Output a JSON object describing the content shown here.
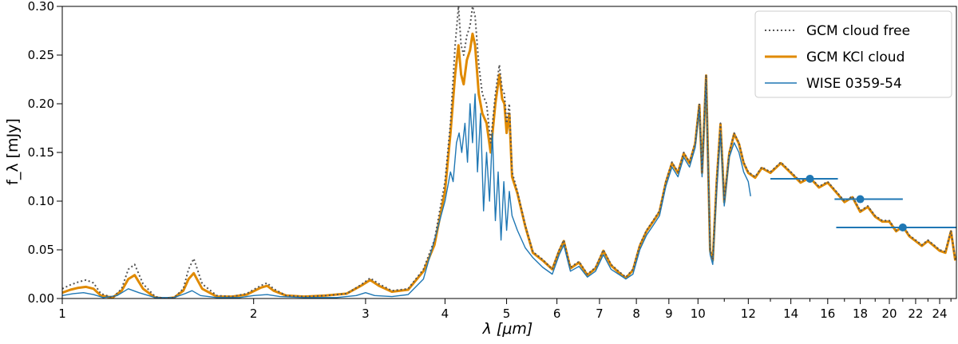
{
  "chart_data": {
    "type": "line",
    "xlabel": "λ [μm]",
    "ylabel": "f_λ [mJy]",
    "xscale": "log",
    "xlim": [
      1,
      25.5
    ],
    "ylim": [
      0,
      0.3
    ],
    "grid": false,
    "legend_position": "top-right",
    "x_ticks": [
      1,
      2,
      3,
      4,
      5,
      6,
      7,
      8,
      9,
      10,
      12,
      14,
      16,
      18,
      20,
      22,
      24
    ],
    "x_tick_labels": [
      "1",
      "2",
      "3",
      "4",
      "5",
      "6",
      "7",
      "8",
      "9",
      "10",
      "12",
      "14",
      "16",
      "18",
      "20",
      "22",
      "24"
    ],
    "y_ticks": [
      0.0,
      0.05,
      0.1,
      0.15,
      0.2,
      0.25,
      0.3
    ],
    "y_tick_labels": [
      "0.00",
      "0.05",
      "0.10",
      "0.15",
      "0.20",
      "0.25",
      "0.30"
    ],
    "series": [
      {
        "name": "GCM cloud free",
        "color": "#555555",
        "style": "dotted",
        "x": [
          1.0,
          1.03,
          1.06,
          1.09,
          1.12,
          1.15,
          1.2,
          1.24,
          1.27,
          1.3,
          1.34,
          1.4,
          1.45,
          1.5,
          1.55,
          1.58,
          1.61,
          1.66,
          1.75,
          1.85,
          1.95,
          2.05,
          2.1,
          2.15,
          2.25,
          2.4,
          2.6,
          2.8,
          2.95,
          3.05,
          3.15,
          3.3,
          3.5,
          3.7,
          3.85,
          4.0,
          4.08,
          4.15,
          4.2,
          4.24,
          4.28,
          4.33,
          4.38,
          4.42,
          4.46,
          4.52,
          4.58,
          4.65,
          4.72,
          4.8,
          4.87,
          4.92,
          4.96,
          5.0,
          5.05,
          5.1,
          5.2,
          5.35,
          5.5,
          5.7,
          5.9,
          6.05,
          6.15,
          6.3,
          6.5,
          6.7,
          6.9,
          7.1,
          7.3,
          7.5,
          7.7,
          7.9,
          8.1,
          8.3,
          8.5,
          8.7,
          8.9,
          9.1,
          9.3,
          9.5,
          9.7,
          9.9,
          10.05,
          10.15,
          10.3,
          10.45,
          10.55,
          10.7,
          10.85,
          11.0,
          11.2,
          11.4,
          11.6,
          11.8,
          12.0,
          12.3,
          12.6,
          13.0,
          13.5,
          14.0,
          14.5,
          15.0,
          15.5,
          16.0,
          16.5,
          17.0,
          17.5,
          18.0,
          18.5,
          19.0,
          19.5,
          20.0,
          20.5,
          21.0,
          21.5,
          22.0,
          22.5,
          23.0,
          23.5,
          24.0,
          24.5,
          25.0,
          25.4
        ],
        "y": [
          0.01,
          0.014,
          0.017,
          0.019,
          0.016,
          0.005,
          0.001,
          0.01,
          0.03,
          0.035,
          0.015,
          0.002,
          0.0,
          0.001,
          0.01,
          0.03,
          0.041,
          0.015,
          0.003,
          0.002,
          0.005,
          0.013,
          0.016,
          0.01,
          0.003,
          0.002,
          0.003,
          0.005,
          0.014,
          0.021,
          0.015,
          0.008,
          0.01,
          0.03,
          0.06,
          0.12,
          0.18,
          0.26,
          0.3,
          0.26,
          0.25,
          0.27,
          0.28,
          0.3,
          0.29,
          0.24,
          0.21,
          0.2,
          0.16,
          0.21,
          0.24,
          0.215,
          0.21,
          0.18,
          0.2,
          0.13,
          0.11,
          0.075,
          0.048,
          0.04,
          0.03,
          0.05,
          0.06,
          0.032,
          0.038,
          0.025,
          0.032,
          0.05,
          0.035,
          0.028,
          0.022,
          0.03,
          0.055,
          0.07,
          0.08,
          0.09,
          0.12,
          0.14,
          0.13,
          0.15,
          0.14,
          0.16,
          0.2,
          0.13,
          0.23,
          0.05,
          0.04,
          0.12,
          0.18,
          0.1,
          0.15,
          0.17,
          0.16,
          0.14,
          0.13,
          0.125,
          0.135,
          0.13,
          0.14,
          0.13,
          0.12,
          0.125,
          0.115,
          0.12,
          0.11,
          0.1,
          0.105,
          0.09,
          0.095,
          0.085,
          0.08,
          0.08,
          0.07,
          0.075,
          0.065,
          0.06,
          0.055,
          0.06,
          0.055,
          0.05,
          0.048,
          0.07,
          0.04
        ]
      },
      {
        "name": "GCM KCl cloud",
        "color": "#e08a00",
        "style": "solid",
        "x": [
          1.0,
          1.03,
          1.06,
          1.09,
          1.12,
          1.15,
          1.2,
          1.24,
          1.27,
          1.3,
          1.34,
          1.4,
          1.45,
          1.5,
          1.55,
          1.58,
          1.61,
          1.66,
          1.75,
          1.85,
          1.95,
          2.05,
          2.1,
          2.15,
          2.25,
          2.4,
          2.6,
          2.8,
          2.95,
          3.05,
          3.15,
          3.3,
          3.5,
          3.7,
          3.85,
          4.0,
          4.08,
          4.15,
          4.2,
          4.24,
          4.28,
          4.33,
          4.38,
          4.42,
          4.46,
          4.52,
          4.58,
          4.65,
          4.72,
          4.8,
          4.87,
          4.92,
          4.96,
          5.0,
          5.05,
          5.1,
          5.2,
          5.35,
          5.5,
          5.7,
          5.9,
          6.05,
          6.15,
          6.3,
          6.5,
          6.7,
          6.9,
          7.1,
          7.3,
          7.5,
          7.7,
          7.9,
          8.1,
          8.3,
          8.5,
          8.7,
          8.9,
          9.1,
          9.3,
          9.5,
          9.7,
          9.9,
          10.05,
          10.15,
          10.3,
          10.45,
          10.55,
          10.7,
          10.85,
          11.0,
          11.2,
          11.4,
          11.6,
          11.8,
          12.0,
          12.3,
          12.6,
          13.0,
          13.5,
          14.0,
          14.5,
          15.0,
          15.5,
          16.0,
          16.5,
          17.0,
          17.5,
          18.0,
          18.5,
          19.0,
          19.5,
          20.0,
          20.5,
          21.0,
          21.5,
          22.0,
          22.5,
          23.0,
          23.5,
          24.0,
          24.5,
          25.0,
          25.4
        ],
        "y": [
          0.006,
          0.009,
          0.011,
          0.012,
          0.01,
          0.003,
          0.001,
          0.008,
          0.02,
          0.024,
          0.01,
          0.001,
          0.0,
          0.001,
          0.008,
          0.02,
          0.026,
          0.01,
          0.002,
          0.002,
          0.004,
          0.011,
          0.013,
          0.008,
          0.003,
          0.002,
          0.003,
          0.005,
          0.013,
          0.019,
          0.013,
          0.007,
          0.009,
          0.028,
          0.055,
          0.11,
          0.17,
          0.23,
          0.26,
          0.23,
          0.22,
          0.245,
          0.255,
          0.272,
          0.26,
          0.21,
          0.19,
          0.18,
          0.15,
          0.2,
          0.23,
          0.205,
          0.2,
          0.17,
          0.19,
          0.125,
          0.108,
          0.074,
          0.047,
          0.039,
          0.03,
          0.049,
          0.059,
          0.031,
          0.037,
          0.024,
          0.031,
          0.049,
          0.034,
          0.027,
          0.021,
          0.029,
          0.054,
          0.069,
          0.079,
          0.089,
          0.119,
          0.139,
          0.129,
          0.149,
          0.139,
          0.159,
          0.199,
          0.129,
          0.229,
          0.049,
          0.039,
          0.119,
          0.179,
          0.099,
          0.149,
          0.169,
          0.159,
          0.139,
          0.129,
          0.124,
          0.134,
          0.129,
          0.139,
          0.129,
          0.119,
          0.124,
          0.114,
          0.119,
          0.109,
          0.099,
          0.104,
          0.089,
          0.094,
          0.084,
          0.079,
          0.079,
          0.069,
          0.074,
          0.064,
          0.059,
          0.054,
          0.059,
          0.054,
          0.049,
          0.047,
          0.069,
          0.039
        ]
      },
      {
        "name": "WISE 0359-54",
        "color": "#1f77b4",
        "style": "solid",
        "x": [
          1.0,
          1.04,
          1.08,
          1.12,
          1.16,
          1.22,
          1.27,
          1.32,
          1.4,
          1.5,
          1.56,
          1.6,
          1.65,
          1.75,
          1.9,
          2.0,
          2.1,
          2.2,
          2.4,
          2.7,
          2.9,
          3.0,
          3.1,
          3.3,
          3.5,
          3.7,
          3.85,
          4.0,
          4.08,
          4.12,
          4.17,
          4.21,
          4.25,
          4.3,
          4.34,
          4.38,
          4.42,
          4.46,
          4.5,
          4.55,
          4.6,
          4.65,
          4.7,
          4.75,
          4.8,
          4.85,
          4.9,
          4.95,
          5.0,
          5.05,
          5.1,
          5.2,
          5.35,
          5.5,
          5.7,
          5.9,
          6.05,
          6.15,
          6.3,
          6.5,
          6.7,
          6.9,
          7.1,
          7.3,
          7.5,
          7.7,
          7.9,
          8.1,
          8.3,
          8.5,
          8.7,
          8.9,
          9.1,
          9.3,
          9.5,
          9.7,
          9.9,
          10.05,
          10.15,
          10.3,
          10.45,
          10.55,
          10.7,
          10.85,
          11.0,
          11.2,
          11.4,
          11.6,
          11.8,
          12.0,
          12.1
        ],
        "y": [
          0.003,
          0.005,
          0.006,
          0.004,
          0.001,
          0.003,
          0.01,
          0.006,
          0.001,
          0.001,
          0.005,
          0.008,
          0.003,
          0.001,
          0.001,
          0.003,
          0.004,
          0.002,
          0.001,
          0.001,
          0.003,
          0.006,
          0.003,
          0.002,
          0.004,
          0.02,
          0.06,
          0.1,
          0.13,
          0.12,
          0.16,
          0.17,
          0.15,
          0.18,
          0.14,
          0.2,
          0.16,
          0.21,
          0.13,
          0.19,
          0.09,
          0.15,
          0.1,
          0.17,
          0.08,
          0.13,
          0.06,
          0.12,
          0.07,
          0.11,
          0.085,
          0.07,
          0.052,
          0.042,
          0.032,
          0.025,
          0.045,
          0.055,
          0.028,
          0.033,
          0.022,
          0.028,
          0.045,
          0.03,
          0.025,
          0.02,
          0.025,
          0.05,
          0.065,
          0.075,
          0.085,
          0.115,
          0.135,
          0.125,
          0.145,
          0.135,
          0.155,
          0.195,
          0.125,
          0.225,
          0.045,
          0.035,
          0.11,
          0.17,
          0.095,
          0.145,
          0.16,
          0.15,
          0.13,
          0.12,
          0.105
        ]
      }
    ],
    "photometry": {
      "color": "#1f77b4",
      "points": [
        {
          "x": 15.0,
          "y": 0.123,
          "xerr_low": 13.0,
          "xerr_high": 16.6
        },
        {
          "x": 18.0,
          "y": 0.102,
          "xerr_low": 16.4,
          "xerr_high": 21.0
        },
        {
          "x": 21.0,
          "y": 0.073,
          "xerr_low": 16.5,
          "xerr_high": 25.5
        }
      ]
    }
  }
}
